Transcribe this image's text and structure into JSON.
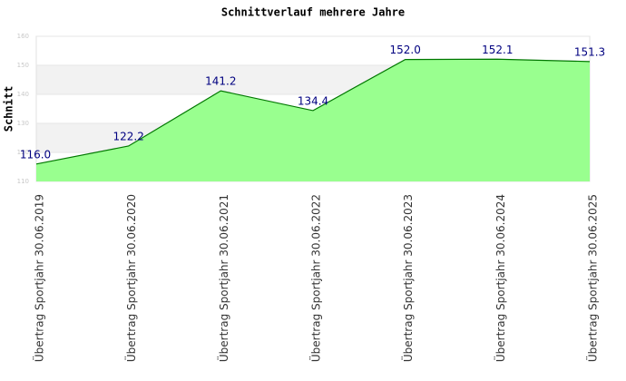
{
  "chart_data": {
    "type": "area",
    "title": "Schnittverlauf mehrere Jahre",
    "y_label": "Schnitt",
    "categories": [
      "Übertrag Sportjahr 30.06.2019",
      "Übertrag Sportjahr 30.06.2020",
      "Übertrag Sportjahr 30.06.2021",
      "Übertrag Sportjahr 30.06.2022",
      "Übertrag Sportjahr 30.06.2023",
      "Übertrag Sportjahr 30.06.2024",
      "Übertrag Sportjahr 30.06.2025"
    ],
    "series": [
      {
        "name": "Schnitt",
        "color": "#007700",
        "fill_color": "#99ff8f",
        "values": [
          116.0,
          122.2,
          141.2,
          134.4,
          152.0,
          152.1,
          151.3
        ],
        "value_labels": [
          "116.0",
          "122.2",
          "141.2",
          "134.4",
          "152.0",
          "152.1",
          "151.3"
        ]
      }
    ],
    "ylim": [
      110,
      160
    ],
    "yticks": [
      110,
      120,
      130,
      140,
      150,
      160
    ],
    "grid": true,
    "band_color": "#f2f2f2"
  }
}
